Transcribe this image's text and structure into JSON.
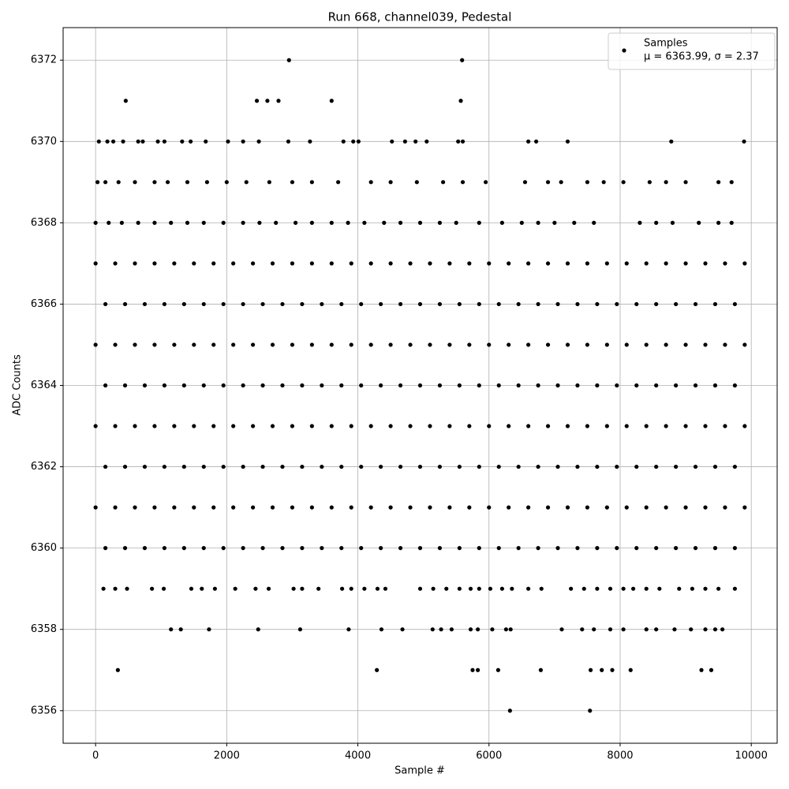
{
  "chart_data": {
    "type": "scatter",
    "title": "Run 668, channel039, Pedestal",
    "xlabel": "Sample #",
    "ylabel": "ADC Counts",
    "xlim": [
      -495,
      10395
    ],
    "ylim": [
      6355.2,
      6372.8
    ],
    "xticks": [
      0,
      2000,
      4000,
      6000,
      8000,
      10000
    ],
    "yticks": [
      6356,
      6358,
      6360,
      6362,
      6364,
      6366,
      6368,
      6370,
      6372
    ],
    "grid": true,
    "legend": "upper right",
    "legend_note": "μ = 6363.99, σ = 2.37",
    "series": [
      {
        "name": "Samples",
        "color": "#000000",
        "x": [
          2950,
          5590,
          460,
          2460,
          2620,
          2790,
          3600,
          5570,
          50,
          180,
          270,
          420,
          650,
          720,
          950,
          1050,
          1320,
          1450,
          1680,
          2020,
          2250,
          2490,
          2940,
          3270,
          3780,
          3930,
          4010,
          4520,
          4720,
          4880,
          5050,
          5530,
          5600,
          6600,
          6720,
          7200,
          8780,
          9890,
          30,
          150,
          350,
          600,
          900,
          1100,
          1400,
          1700,
          2000,
          2300,
          2650,
          3000,
          3300,
          3700,
          4200,
          4500,
          4900,
          5300,
          5600,
          5950,
          6550,
          6900,
          7100,
          7500,
          7750,
          8050,
          8450,
          8700,
          9000,
          9500,
          9700,
          0,
          200,
          400,
          650,
          900,
          1150,
          1400,
          1650,
          1950,
          2250,
          2500,
          2750,
          3050,
          3300,
          3600,
          3850,
          4100,
          4400,
          4650,
          4950,
          5250,
          5500,
          5850,
          6200,
          6500,
          6750,
          7000,
          7300,
          7600,
          8300,
          8550,
          8800,
          9200,
          9500,
          9700,
          0,
          300,
          600,
          900,
          1200,
          1500,
          1800,
          2100,
          2400,
          2700,
          3000,
          3300,
          3600,
          3900,
          4200,
          4500,
          4800,
          5100,
          5400,
          5700,
          6000,
          6300,
          6600,
          6900,
          7200,
          7500,
          7800,
          8100,
          8400,
          8700,
          9000,
          9300,
          9600,
          9900,
          150,
          450,
          750,
          1050,
          1350,
          1650,
          1950,
          2250,
          2550,
          2850,
          3150,
          3450,
          3750,
          4050,
          4350,
          4650,
          4950,
          5250,
          5550,
          5850,
          6150,
          6450,
          6750,
          7050,
          7350,
          7650,
          7950,
          8250,
          8550,
          8850,
          9150,
          9450,
          9750,
          0,
          300,
          600,
          900,
          1200,
          1500,
          1800,
          2100,
          2400,
          2700,
          3000,
          3300,
          3600,
          3900,
          4200,
          4500,
          4800,
          5100,
          5400,
          5700,
          6000,
          6300,
          6600,
          6900,
          7200,
          7500,
          7800,
          8100,
          8400,
          8700,
          9000,
          9300,
          9600,
          9900,
          150,
          450,
          750,
          1050,
          1350,
          1650,
          1950,
          2250,
          2550,
          2850,
          3150,
          3450,
          3750,
          4050,
          4350,
          4650,
          4950,
          5250,
          5550,
          5850,
          6150,
          6450,
          6750,
          7050,
          7350,
          7650,
          7950,
          8250,
          8550,
          8850,
          9150,
          9450,
          9750,
          0,
          300,
          600,
          900,
          1200,
          1500,
          1800,
          2100,
          2400,
          2700,
          3000,
          3300,
          3600,
          3900,
          4200,
          4500,
          4800,
          5100,
          5400,
          5700,
          6000,
          6300,
          6600,
          6900,
          7200,
          7500,
          7800,
          8100,
          8400,
          8700,
          9000,
          9300,
          9600,
          9900,
          150,
          450,
          750,
          1050,
          1350,
          1650,
          1950,
          2250,
          2550,
          2850,
          3150,
          3450,
          3750,
          4050,
          4350,
          4650,
          4950,
          5250,
          5550,
          5850,
          6150,
          6450,
          6750,
          7050,
          7350,
          7650,
          7950,
          8250,
          8550,
          8850,
          9150,
          9450,
          9750,
          0,
          300,
          600,
          900,
          1200,
          1500,
          1800,
          2100,
          2400,
          2700,
          3000,
          3300,
          3600,
          3900,
          4200,
          4500,
          4800,
          5100,
          5400,
          5700,
          6000,
          6300,
          6600,
          6900,
          7200,
          7500,
          7800,
          8100,
          8400,
          8700,
          9000,
          9300,
          9600,
          9900,
          150,
          450,
          750,
          1050,
          1350,
          1650,
          1950,
          2250,
          2550,
          2850,
          3150,
          3450,
          3750,
          4050,
          4350,
          4650,
          4950,
          5250,
          5550,
          5850,
          6150,
          6450,
          6750,
          7050,
          7350,
          7650,
          7950,
          8250,
          8550,
          8850,
          9150,
          9450,
          9750,
          120,
          300,
          480,
          860,
          1040,
          1460,
          1620,
          1820,
          2130,
          2440,
          2640,
          3020,
          3150,
          3400,
          3760,
          3900,
          4100,
          4300,
          4420,
          4950,
          5150,
          5350,
          5550,
          5720,
          5850,
          6020,
          6200,
          6350,
          6600,
          6800,
          7250,
          7450,
          7650,
          7850,
          8050,
          8200,
          8400,
          8600,
          8900,
          9100,
          9300,
          9500,
          9750,
          1150,
          1300,
          1730,
          2480,
          3120,
          3860,
          4360,
          4680,
          5140,
          5270,
          5430,
          5720,
          5830,
          6050,
          6260,
          6330,
          7110,
          7420,
          7600,
          7850,
          8050,
          8400,
          8550,
          8830,
          9080,
          9300,
          9450,
          9560,
          340,
          4290,
          5750,
          5830,
          6140,
          6790,
          7550,
          7720,
          7880,
          8160,
          9240,
          9390,
          6320,
          7540
        ],
        "values": [
          6372,
          6372,
          6371,
          6371,
          6371,
          6371,
          6371,
          6371,
          6370,
          6370,
          6370,
          6370,
          6370,
          6370,
          6370,
          6370,
          6370,
          6370,
          6370,
          6370,
          6370,
          6370,
          6370,
          6370,
          6370,
          6370,
          6370,
          6370,
          6370,
          6370,
          6370,
          6370,
          6370,
          6370,
          6370,
          6370,
          6370,
          6370,
          6369,
          6369,
          6369,
          6369,
          6369,
          6369,
          6369,
          6369,
          6369,
          6369,
          6369,
          6369,
          6369,
          6369,
          6369,
          6369,
          6369,
          6369,
          6369,
          6369,
          6369,
          6369,
          6369,
          6369,
          6369,
          6369,
          6369,
          6369,
          6369,
          6369,
          6369,
          6368,
          6368,
          6368,
          6368,
          6368,
          6368,
          6368,
          6368,
          6368,
          6368,
          6368,
          6368,
          6368,
          6368,
          6368,
          6368,
          6368,
          6368,
          6368,
          6368,
          6368,
          6368,
          6368,
          6368,
          6368,
          6368,
          6368,
          6368,
          6368,
          6368,
          6368,
          6368,
          6368,
          6368,
          6368,
          6367,
          6367,
          6367,
          6367,
          6367,
          6367,
          6367,
          6367,
          6367,
          6367,
          6367,
          6367,
          6367,
          6367,
          6367,
          6367,
          6367,
          6367,
          6367,
          6367,
          6367,
          6367,
          6367,
          6367,
          6367,
          6367,
          6367,
          6367,
          6367,
          6367,
          6367,
          6367,
          6367,
          6367,
          6366,
          6366,
          6366,
          6366,
          6366,
          6366,
          6366,
          6366,
          6366,
          6366,
          6366,
          6366,
          6366,
          6366,
          6366,
          6366,
          6366,
          6366,
          6366,
          6366,
          6366,
          6366,
          6366,
          6366,
          6366,
          6366,
          6366,
          6366,
          6366,
          6366,
          6366,
          6366,
          6366,
          6365,
          6365,
          6365,
          6365,
          6365,
          6365,
          6365,
          6365,
          6365,
          6365,
          6365,
          6365,
          6365,
          6365,
          6365,
          6365,
          6365,
          6365,
          6365,
          6365,
          6365,
          6365,
          6365,
          6365,
          6365,
          6365,
          6365,
          6365,
          6365,
          6365,
          6365,
          6365,
          6365,
          6365,
          6364,
          6364,
          6364,
          6364,
          6364,
          6364,
          6364,
          6364,
          6364,
          6364,
          6364,
          6364,
          6364,
          6364,
          6364,
          6364,
          6364,
          6364,
          6364,
          6364,
          6364,
          6364,
          6364,
          6364,
          6364,
          6364,
          6364,
          6364,
          6364,
          6364,
          6364,
          6364,
          6364,
          6363,
          6363,
          6363,
          6363,
          6363,
          6363,
          6363,
          6363,
          6363,
          6363,
          6363,
          6363,
          6363,
          6363,
          6363,
          6363,
          6363,
          6363,
          6363,
          6363,
          6363,
          6363,
          6363,
          6363,
          6363,
          6363,
          6363,
          6363,
          6363,
          6363,
          6363,
          6363,
          6363,
          6363,
          6362,
          6362,
          6362,
          6362,
          6362,
          6362,
          6362,
          6362,
          6362,
          6362,
          6362,
          6362,
          6362,
          6362,
          6362,
          6362,
          6362,
          6362,
          6362,
          6362,
          6362,
          6362,
          6362,
          6362,
          6362,
          6362,
          6362,
          6362,
          6362,
          6362,
          6362,
          6362,
          6362,
          6361,
          6361,
          6361,
          6361,
          6361,
          6361,
          6361,
          6361,
          6361,
          6361,
          6361,
          6361,
          6361,
          6361,
          6361,
          6361,
          6361,
          6361,
          6361,
          6361,
          6361,
          6361,
          6361,
          6361,
          6361,
          6361,
          6361,
          6361,
          6361,
          6361,
          6361,
          6361,
          6361,
          6361,
          6360,
          6360,
          6360,
          6360,
          6360,
          6360,
          6360,
          6360,
          6360,
          6360,
          6360,
          6360,
          6360,
          6360,
          6360,
          6360,
          6360,
          6360,
          6360,
          6360,
          6360,
          6360,
          6360,
          6360,
          6360,
          6360,
          6360,
          6360,
          6360,
          6360,
          6360,
          6360,
          6360,
          6359,
          6359,
          6359,
          6359,
          6359,
          6359,
          6359,
          6359,
          6359,
          6359,
          6359,
          6359,
          6359,
          6359,
          6359,
          6359,
          6359,
          6359,
          6359,
          6359,
          6359,
          6359,
          6359,
          6359,
          6359,
          6359,
          6359,
          6359,
          6359,
          6359,
          6359,
          6359,
          6359,
          6359,
          6359,
          6359,
          6359,
          6359,
          6359,
          6359,
          6359,
          6359,
          6359,
          6358,
          6358,
          6358,
          6358,
          6358,
          6358,
          6358,
          6358,
          6358,
          6358,
          6358,
          6358,
          6358,
          6358,
          6358,
          6358,
          6358,
          6358,
          6358,
          6358,
          6358,
          6358,
          6358,
          6358,
          6358,
          6358,
          6358,
          6358,
          6357,
          6357,
          6357,
          6357,
          6357,
          6357,
          6357,
          6357,
          6357,
          6357,
          6357,
          6357,
          6356,
          6356
        ]
      }
    ]
  }
}
